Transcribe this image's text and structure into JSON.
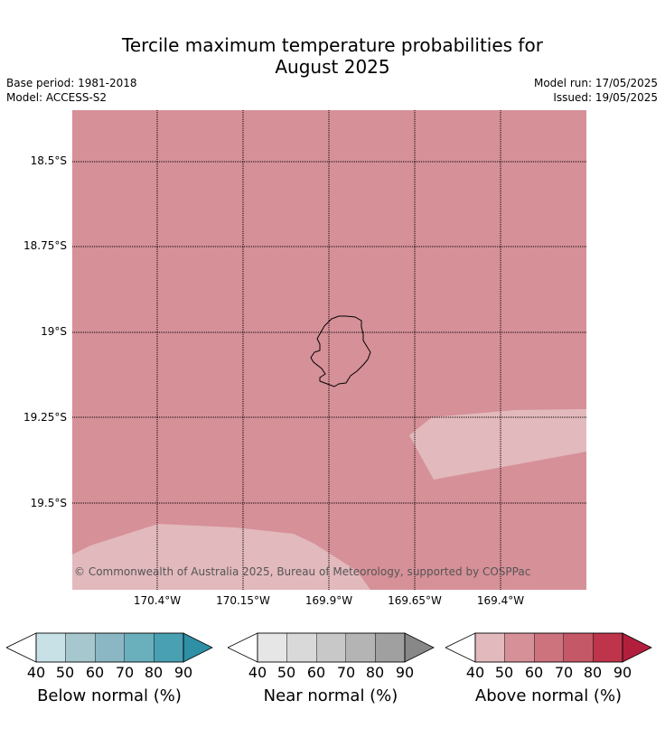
{
  "title_line1": "Tercile maximum temperature probabilities for",
  "title_line2": "August 2025",
  "base_period": "Base period: 1981-2018",
  "model": "Model: ACCESS-S2",
  "model_run": "Model run: 17/05/2025",
  "issued": "Issued: 19/05/2025",
  "copyright": "© Commonwealth of Australia 2025, Bureau of Meteorology, supported by COSPPac",
  "lat_labels": [
    "18.5°S",
    "18.75°S",
    "19°S",
    "19.25°S",
    "19.5°S"
  ],
  "lon_labels": [
    "170.4°W",
    "170.15°W",
    "169.9°W",
    "169.65°W",
    "169.4°W"
  ],
  "map_colors": {
    "background": "#d69098",
    "light_patch": "#e2b9bd",
    "coast": "#000000"
  },
  "colorbars": [
    {
      "label": "Below normal (%)",
      "ticks": [
        "40",
        "50",
        "60",
        "70",
        "80",
        "90"
      ],
      "colors": [
        "#c8e1e7",
        "#a6c7cd",
        "#8ab7c3",
        "#6aafbc",
        "#48a0b2",
        "#2e8fa5"
      ]
    },
    {
      "label": "Near normal (%)",
      "ticks": [
        "40",
        "50",
        "60",
        "70",
        "80",
        "90"
      ],
      "colors": [
        "#e6e6e6",
        "#d9d9d9",
        "#c8c8c8",
        "#b4b4b4",
        "#a0a0a0",
        "#888888"
      ]
    },
    {
      "label": "Above normal (%)",
      "ticks": [
        "40",
        "50",
        "60",
        "70",
        "80",
        "90"
      ],
      "colors": [
        "#e2b9bd",
        "#d69098",
        "#cc737d",
        "#c45866",
        "#be344b",
        "#b21f3d"
      ]
    }
  ]
}
